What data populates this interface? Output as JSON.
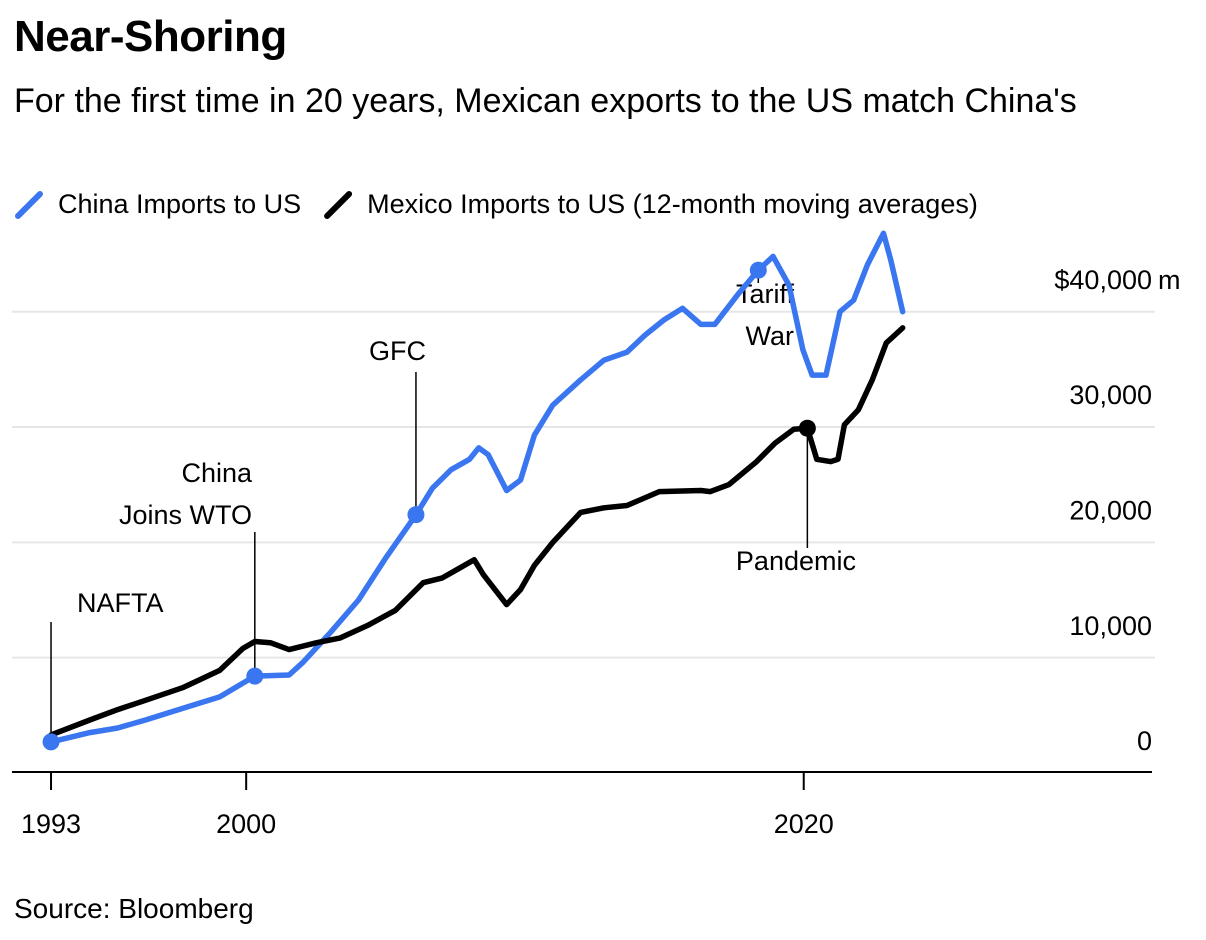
{
  "chart_data": {
    "type": "line",
    "title": "Near-Shoring",
    "subtitle": "For the first time in 20 years, Mexican exports to the US match China's",
    "source": "Source: Bloomberg",
    "y_unit": "m",
    "xlim": [
      1991.6,
      2032.6
    ],
    "xticks": [
      1993,
      2000,
      2020
    ],
    "ylim": [
      0,
      47000
    ],
    "yticks": [
      0,
      {
        "value": 10000,
        "label": "10,000"
      },
      {
        "value": 20000,
        "label": "20,000"
      },
      {
        "value": 30000,
        "label": "30,000"
      },
      {
        "value": 40000,
        "label": "$40,000"
      }
    ],
    "grid": true,
    "annotations": [
      [
        "NAFTA"
      ],
      [
        "China",
        "Joins WTO"
      ],
      [
        "GFC"
      ],
      [
        "Tariff",
        "War"
      ],
      [
        "Pandemic"
      ]
    ],
    "series": [
      {
        "name": "China Imports to US",
        "color": "#3a76f0",
        "x": [
          1993,
          1994.39,
          1995.39,
          1996.39,
          1997.72,
          1999.05,
          2000.31,
          2001.54,
          2002.04,
          2003.03,
          2004.03,
          2005.02,
          2006.09,
          2006.68,
          2007.35,
          2008.01,
          2008.34,
          2008.68,
          2009.34,
          2009.84,
          2010.34,
          2011,
          2012,
          2012.83,
          2013.66,
          2014.32,
          2014.99,
          2015.65,
          2016.31,
          2016.81,
          2017.64,
          2018.37,
          2018.9,
          2019.47,
          2019.97,
          2020.3,
          2020.8,
          2021.3,
          2021.79,
          2022.29,
          2022.86,
          2023.12,
          2023.55
        ],
        "values": [
          2700,
          3500,
          3900,
          4600,
          5600,
          6600,
          8400,
          8500,
          9600,
          12200,
          15000,
          18700,
          22400,
          24700,
          26300,
          27200,
          28200,
          27600,
          24500,
          25400,
          29300,
          31900,
          34100,
          35800,
          36500,
          38000,
          39300,
          40300,
          38900,
          38900,
          41500,
          43600,
          44800,
          42300,
          36700,
          34500,
          34500,
          40000,
          41000,
          44100,
          46800,
          44500,
          40000
        ]
      },
      {
        "name": "Mexico Imports to US (12-month moving averages)",
        "color": "#000000",
        "x": [
          1993,
          1994.39,
          1995.39,
          1996.39,
          1997.72,
          1999.05,
          1999.88,
          2000.31,
          2000.87,
          2001.54,
          2002.53,
          2003.36,
          2004.36,
          2005.35,
          2006.35,
          2007.02,
          2007.68,
          2008.18,
          2008.51,
          2009.34,
          2009.84,
          2010.34,
          2011,
          2012,
          2012.83,
          2013.66,
          2014.82,
          2016.31,
          2016.65,
          2017.31,
          2018.31,
          2018.97,
          2019.64,
          2020.13,
          2020.47,
          2020.96,
          2021.23,
          2021.46,
          2021.96,
          2022.46,
          2022.96,
          2023.55
        ],
        "values": [
          3300,
          4600,
          5500,
          6300,
          7400,
          8900,
          10800,
          11400,
          11300,
          10700,
          11300,
          11700,
          12800,
          14100,
          16500,
          16900,
          17800,
          18500,
          17200,
          14600,
          15900,
          18000,
          20000,
          22600,
          23000,
          23200,
          24400,
          24500,
          24400,
          25000,
          27000,
          28600,
          29800,
          29900,
          27200,
          27000,
          27200,
          30200,
          31500,
          34100,
          37300,
          38600
        ]
      }
    ]
  }
}
